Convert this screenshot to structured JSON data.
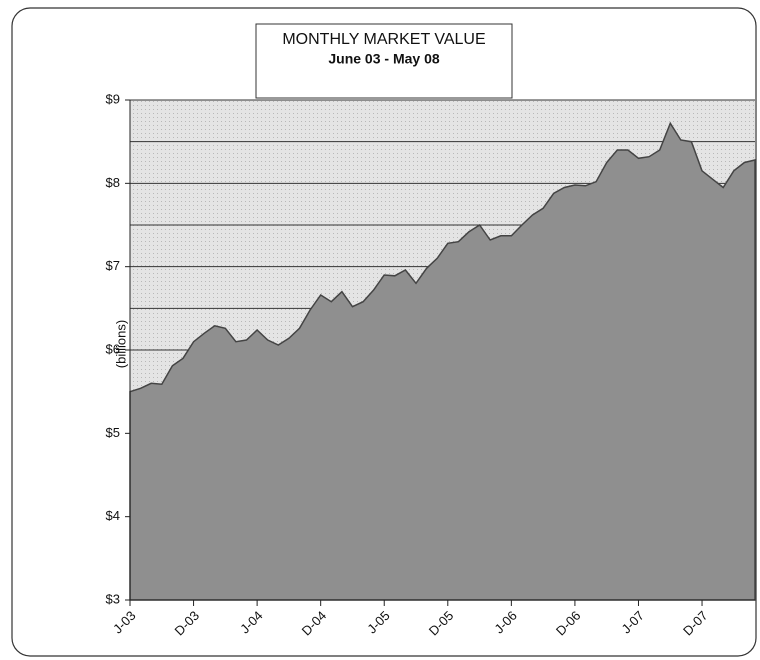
{
  "chart_data": {
    "type": "area",
    "title": "MONTHLY MARKET VALUE",
    "subtitle": "June  03 - May 08",
    "y_label": "(billions)",
    "categories": [
      "J-03",
      null,
      null,
      null,
      null,
      null,
      "D-03",
      null,
      null,
      null,
      null,
      null,
      "J-04",
      null,
      null,
      null,
      null,
      null,
      "D-04",
      null,
      null,
      null,
      null,
      null,
      "J-05",
      null,
      null,
      null,
      null,
      null,
      "D-05",
      null,
      null,
      null,
      null,
      null,
      "J-06",
      null,
      null,
      null,
      null,
      null,
      "D-06",
      null,
      null,
      null,
      null,
      null,
      "J-07",
      null,
      null,
      null,
      null,
      null,
      "D-07",
      null,
      null,
      null,
      null,
      null
    ],
    "values": [
      5.5,
      5.54,
      5.6,
      5.59,
      5.81,
      5.9,
      6.1,
      6.2,
      6.29,
      6.26,
      6.1,
      6.12,
      6.24,
      6.12,
      6.06,
      6.14,
      6.26,
      6.48,
      6.66,
      6.58,
      6.7,
      6.52,
      6.58,
      6.72,
      6.9,
      6.89,
      6.96,
      6.8,
      6.98,
      7.1,
      7.28,
      7.3,
      7.42,
      7.5,
      7.32,
      7.37,
      7.37,
      7.5,
      7.62,
      7.7,
      7.88,
      7.95,
      7.98,
      7.97,
      8.02,
      8.25,
      8.4,
      8.4,
      8.3,
      8.32,
      8.4,
      8.72,
      8.52,
      8.5,
      8.15,
      8.05,
      7.95,
      8.15,
      8.25,
      8.28
    ],
    "color": "#8f8f8f",
    "ylim": [
      3,
      9
    ],
    "yticks": [
      {
        "value": 3,
        "label": "$3"
      },
      {
        "value": 4,
        "label": "$4"
      },
      {
        "value": 5,
        "label": "$5"
      },
      {
        "value": 6,
        "label": "$6"
      },
      {
        "value": 7,
        "label": "$7"
      },
      {
        "value": 8,
        "label": "$8"
      },
      {
        "value": 9,
        "label": "$9"
      }
    ],
    "ygrid": [
      3.5,
      4,
      4.5,
      5,
      5.5,
      6,
      6.5,
      7,
      7.5,
      8,
      8.5,
      9
    ],
    "grid": true
  }
}
